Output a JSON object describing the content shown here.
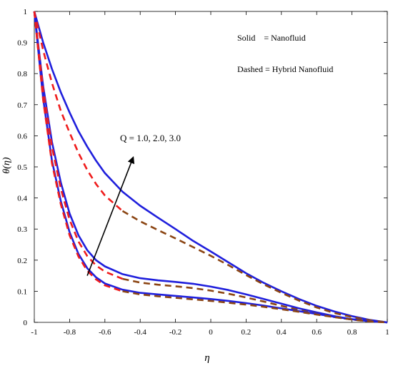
{
  "chart_data": {
    "type": "line",
    "title": "",
    "xlabel": "η",
    "ylabel": "θ(η)",
    "xlim": [
      -1,
      1
    ],
    "ylim": [
      0,
      1
    ],
    "x_ticks": [
      -1,
      -0.8,
      -0.6,
      -0.4,
      -0.2,
      0,
      0.2,
      0.4,
      0.6,
      0.8,
      1
    ],
    "x_tick_labels": [
      "-1",
      "-0.8",
      "-0.6",
      "-0.4",
      "-0.2",
      "0",
      "0.2",
      "0.4",
      "0.6",
      "0.8",
      "1"
    ],
    "y_ticks": [
      0,
      0.1,
      0.2,
      0.3,
      0.4,
      0.5,
      0.6,
      0.7,
      0.8,
      0.9,
      1
    ],
    "y_tick_labels": [
      "0",
      "0.1",
      "0.2",
      "0.3",
      "0.4",
      "0.5",
      "0.6",
      "0.7",
      "0.8",
      "0.9",
      "1"
    ],
    "grid": false,
    "legend_lines": [
      "Solid    = Nanofluid",
      "Dashed = Hybrid Nanofluid"
    ],
    "legend_position": "top-right",
    "annotation": "Q = 1.0, 2.0, 3.0",
    "arrow": {
      "from": [
        -0.7,
        0.15
      ],
      "to": [
        -0.44,
        0.53
      ]
    },
    "x": [
      -1,
      -0.95,
      -0.9,
      -0.85,
      -0.8,
      -0.75,
      -0.7,
      -0.65,
      -0.6,
      -0.5,
      -0.4,
      -0.3,
      -0.2,
      -0.1,
      0,
      0.1,
      0.2,
      0.3,
      0.4,
      0.5,
      0.6,
      0.7,
      0.8,
      0.9,
      1
    ],
    "series": [
      {
        "style": "solid",
        "color": "#1f1fdc",
        "values": [
          1,
          0.9,
          0.815,
          0.74,
          0.675,
          0.615,
          0.565,
          0.52,
          0.48,
          0.42,
          0.375,
          0.337,
          0.3,
          0.262,
          0.228,
          0.193,
          0.158,
          0.127,
          0.1,
          0.075,
          0.053,
          0.035,
          0.02,
          0.008,
          0
        ]
      },
      {
        "style": "dashed",
        "color": "#ef1c1c",
        "color_tail": "#8b4513",
        "values": [
          1,
          0.875,
          0.77,
          0.68,
          0.61,
          0.545,
          0.49,
          0.445,
          0.408,
          0.358,
          0.325,
          0.297,
          0.27,
          0.242,
          0.214,
          0.184,
          0.152,
          0.122,
          0.095,
          0.07,
          0.048,
          0.03,
          0.017,
          0.007,
          0
        ]
      },
      {
        "style": "solid",
        "color": "#1f1fdc",
        "values": [
          1,
          0.76,
          0.58,
          0.45,
          0.35,
          0.28,
          0.232,
          0.2,
          0.18,
          0.155,
          0.142,
          0.135,
          0.13,
          0.124,
          0.115,
          0.104,
          0.09,
          0.075,
          0.06,
          0.045,
          0.032,
          0.02,
          0.01,
          0.004,
          0
        ]
      },
      {
        "style": "dashed",
        "color": "#ef1c1c",
        "color_tail": "#8b4513",
        "values": [
          1,
          0.75,
          0.565,
          0.43,
          0.33,
          0.26,
          0.213,
          0.183,
          0.163,
          0.14,
          0.128,
          0.121,
          0.116,
          0.11,
          0.102,
          0.092,
          0.08,
          0.067,
          0.053,
          0.04,
          0.028,
          0.017,
          0.009,
          0.003,
          0
        ]
      },
      {
        "style": "solid",
        "color": "#1f1fdc",
        "values": [
          1,
          0.72,
          0.52,
          0.39,
          0.29,
          0.22,
          0.174,
          0.145,
          0.125,
          0.105,
          0.095,
          0.09,
          0.085,
          0.08,
          0.075,
          0.069,
          0.062,
          0.054,
          0.045,
          0.036,
          0.027,
          0.018,
          0.01,
          0.004,
          0
        ]
      },
      {
        "style": "dashed",
        "color": "#ef1c1c",
        "color_tail": "#8b4513",
        "values": [
          1,
          0.715,
          0.512,
          0.38,
          0.28,
          0.212,
          0.166,
          0.138,
          0.119,
          0.1,
          0.09,
          0.084,
          0.079,
          0.074,
          0.069,
          0.063,
          0.057,
          0.05,
          0.042,
          0.034,
          0.025,
          0.017,
          0.009,
          0.003,
          0
        ]
      }
    ]
  }
}
